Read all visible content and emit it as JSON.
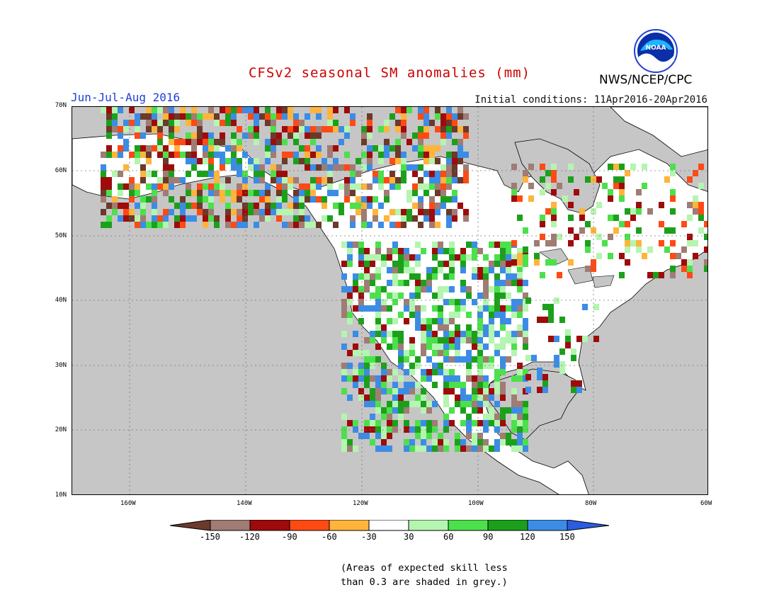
{
  "header": {
    "title": "CFSv2 seasonal SM anomalies (mm)",
    "agency": "NWS/NCEP/CPC",
    "season": "Jun-Jul-Aug 2016",
    "initial_conditions": "Initial conditions: 11Apr2016-20Apr2016",
    "logo_text": "NOAA"
  },
  "colors": {
    "title": "#cc0000",
    "season": "#1f3fd6",
    "land": "#ffffff",
    "ocean_and_low_skill": "#c6c6c6",
    "legend": [
      "#6b3a2a",
      "#a07c74",
      "#9e0b0b",
      "#ff4a14",
      "#ffb43c",
      "#ffffff",
      "#b4f5b0",
      "#4ce04c",
      "#1ca01c",
      "#3c8ce6",
      "#2c5ce0"
    ]
  },
  "map": {
    "lat_labels": [
      "70N",
      "60N",
      "50N",
      "40N",
      "30N",
      "20N",
      "10N"
    ],
    "lon_labels": [
      "160W",
      "140W",
      "120W",
      "100W",
      "80W",
      "60W"
    ]
  },
  "legend": {
    "ticks": [
      "-150",
      "-120",
      "-90",
      "-60",
      "-30",
      "30",
      "60",
      "90",
      "120",
      "150"
    ]
  },
  "note": {
    "line1": "(Areas of expected skill less",
    "line2": "than 0.3 are shaded in grey.)"
  }
}
